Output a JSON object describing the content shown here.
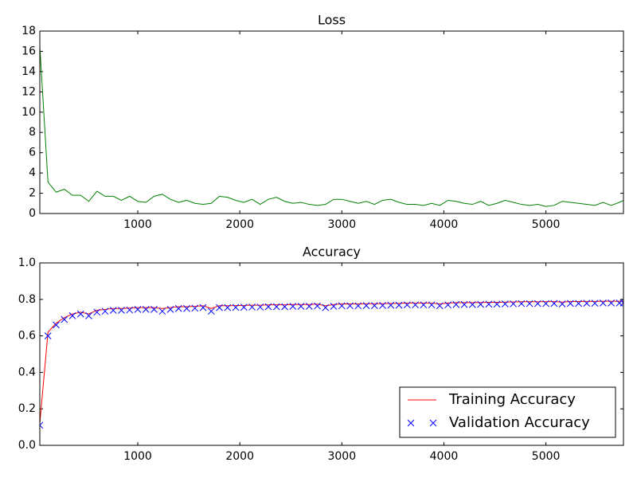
{
  "chart_data": [
    {
      "type": "line",
      "title": "Loss",
      "color": "#008000",
      "x": [
        40,
        120,
        200,
        280,
        360,
        440,
        520,
        600,
        680,
        760,
        840,
        920,
        1000,
        1080,
        1160,
        1240,
        1320,
        1400,
        1480,
        1560,
        1640,
        1720,
        1800,
        1880,
        1960,
        2040,
        2120,
        2200,
        2280,
        2360,
        2440,
        2520,
        2600,
        2680,
        2760,
        2840,
        2920,
        3000,
        3080,
        3160,
        3240,
        3320,
        3400,
        3480,
        3560,
        3640,
        3720,
        3800,
        3880,
        3960,
        4040,
        4120,
        4200,
        4280,
        4360,
        4440,
        4520,
        4600,
        4680,
        4760,
        4840,
        4920,
        5000,
        5080,
        5160,
        5240,
        5320,
        5400,
        5480,
        5560,
        5640,
        5720,
        5760
      ],
      "values": [
        16.5,
        3.1,
        2.1,
        2.4,
        1.8,
        1.8,
        1.2,
        2.2,
        1.7,
        1.7,
        1.3,
        1.7,
        1.2,
        1.1,
        1.7,
        1.9,
        1.4,
        1.1,
        1.3,
        1.0,
        0.9,
        1.0,
        1.7,
        1.6,
        1.3,
        1.1,
        1.4,
        0.9,
        1.4,
        1.6,
        1.2,
        1.0,
        1.1,
        0.9,
        0.8,
        0.9,
        1.4,
        1.4,
        1.2,
        1.0,
        1.2,
        0.9,
        1.3,
        1.4,
        1.1,
        0.9,
        0.9,
        0.8,
        1.0,
        0.8,
        1.3,
        1.2,
        1.0,
        0.9,
        1.2,
        0.8,
        1.0,
        1.3,
        1.1,
        0.9,
        0.8,
        0.9,
        0.7,
        0.8,
        1.2,
        1.1,
        1.0,
        0.9,
        0.8,
        1.1,
        0.8,
        1.1,
        1.3
      ],
      "xlim": [
        40,
        5760
      ],
      "xticks": [
        1000,
        2000,
        3000,
        4000,
        5000
      ],
      "ylim": [
        0,
        18
      ],
      "yticks": [
        0,
        2,
        4,
        6,
        8,
        10,
        12,
        14,
        16,
        18
      ]
    },
    {
      "type": "line",
      "title": "Accuracy",
      "legend": "lower right",
      "x": [
        40,
        120,
        200,
        280,
        360,
        440,
        520,
        600,
        680,
        760,
        840,
        920,
        1000,
        1080,
        1160,
        1240,
        1320,
        1400,
        1480,
        1560,
        1640,
        1720,
        1800,
        1880,
        1960,
        2040,
        2120,
        2200,
        2280,
        2360,
        2440,
        2520,
        2600,
        2680,
        2760,
        2840,
        2920,
        3000,
        3080,
        3160,
        3240,
        3320,
        3400,
        3480,
        3560,
        3640,
        3720,
        3800,
        3880,
        3960,
        4040,
        4120,
        4200,
        4280,
        4360,
        4440,
        4520,
        4600,
        4680,
        4760,
        4840,
        4920,
        5000,
        5080,
        5160,
        5240,
        5320,
        5400,
        5480,
        5560,
        5640,
        5720,
        5760
      ],
      "series": [
        {
          "name": "Training Accuracy",
          "color": "#ff0000",
          "marker": "none",
          "values": [
            0.12,
            0.62,
            0.67,
            0.7,
            0.72,
            0.73,
            0.72,
            0.74,
            0.745,
            0.75,
            0.75,
            0.752,
            0.755,
            0.755,
            0.755,
            0.75,
            0.755,
            0.76,
            0.76,
            0.762,
            0.765,
            0.75,
            0.765,
            0.765,
            0.766,
            0.767,
            0.768,
            0.768,
            0.77,
            0.77,
            0.77,
            0.772,
            0.772,
            0.772,
            0.774,
            0.765,
            0.772,
            0.775,
            0.775,
            0.775,
            0.776,
            0.776,
            0.777,
            0.778,
            0.778,
            0.78,
            0.78,
            0.78,
            0.78,
            0.775,
            0.78,
            0.782,
            0.782,
            0.782,
            0.783,
            0.784,
            0.784,
            0.785,
            0.786,
            0.787,
            0.787,
            0.787,
            0.787,
            0.788,
            0.785,
            0.788,
            0.788,
            0.789,
            0.789,
            0.79,
            0.79,
            0.79,
            0.79
          ]
        },
        {
          "name": "Validation Accuracy",
          "color": "#0000ff",
          "marker": "x",
          "values": [
            0.11,
            0.6,
            0.66,
            0.69,
            0.71,
            0.72,
            0.71,
            0.73,
            0.735,
            0.74,
            0.74,
            0.742,
            0.745,
            0.745,
            0.745,
            0.735,
            0.745,
            0.75,
            0.75,
            0.752,
            0.755,
            0.735,
            0.755,
            0.755,
            0.756,
            0.757,
            0.758,
            0.758,
            0.76,
            0.76,
            0.76,
            0.762,
            0.762,
            0.762,
            0.764,
            0.755,
            0.762,
            0.765,
            0.765,
            0.765,
            0.766,
            0.766,
            0.767,
            0.768,
            0.768,
            0.77,
            0.77,
            0.77,
            0.77,
            0.765,
            0.77,
            0.772,
            0.772,
            0.772,
            0.773,
            0.774,
            0.774,
            0.775,
            0.776,
            0.777,
            0.777,
            0.777,
            0.777,
            0.778,
            0.775,
            0.778,
            0.778,
            0.779,
            0.779,
            0.78,
            0.78,
            0.78,
            0.78
          ]
        }
      ],
      "xlim": [
        40,
        5760
      ],
      "xticks": [
        1000,
        2000,
        3000,
        4000,
        5000
      ],
      "ylim": [
        0,
        1
      ],
      "yticks": [
        {
          "value": 0,
          "label": "0.0"
        },
        0.2,
        0.4,
        0.6,
        0.8,
        {
          "value": 1,
          "label": "1.0"
        }
      ]
    }
  ]
}
